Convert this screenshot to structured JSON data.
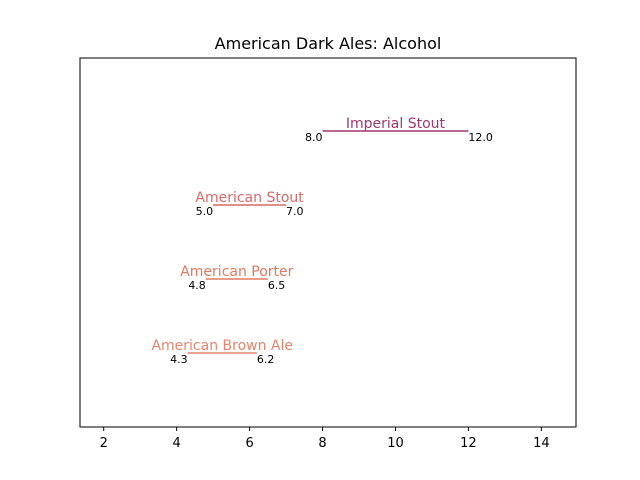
{
  "chart_data": {
    "type": "range",
    "title": "American Dark Ales: Alcohol",
    "xlabel": "",
    "ylabel": "",
    "xlim": [
      1.35,
      14.95
    ],
    "xticks": [
      2,
      4,
      6,
      8,
      10,
      12,
      14
    ],
    "grid": false,
    "series": [
      {
        "name": "American Brown Ale",
        "low": 4.3,
        "high": 6.2,
        "low_label": "4.3",
        "high_label": "6.2",
        "color": "#e8836a"
      },
      {
        "name": "American Porter",
        "low": 4.8,
        "high": 6.5,
        "low_label": "4.8",
        "high_label": "6.5",
        "color": "#e07a5f"
      },
      {
        "name": "American Stout",
        "low": 5.0,
        "high": 7.0,
        "low_label": "5.0",
        "high_label": "7.0",
        "color": "#d96a66"
      },
      {
        "name": "Imperial Stout",
        "low": 8.0,
        "high": 12.0,
        "low_label": "8.0",
        "high_label": "12.0",
        "color": "#a3366f"
      }
    ]
  }
}
